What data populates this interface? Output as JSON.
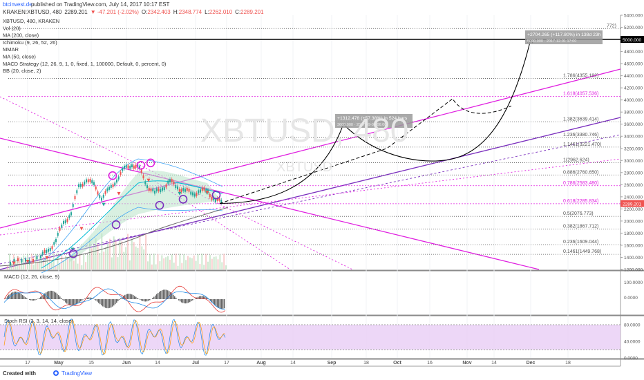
{
  "header": {
    "publisher_link": "btcinvest.de",
    "published_text": "published on TradingView.com, July 14, 2017 10:17 EST",
    "symbol": "KRAKEN:XBTUSD, 480",
    "last": "2289.201",
    "change": "▼ -47.201 (-2.02%)",
    "ohlc": [
      {
        "label": "O:",
        "value": "2342.403"
      },
      {
        "label": "H:",
        "value": "2348.774"
      },
      {
        "label": "L:",
        "value": "2262.010"
      },
      {
        "label": "C:",
        "value": "2289.201"
      }
    ]
  },
  "indicators": [
    "XBTUSD, 480, KRAKEN",
    "Vol (20)",
    "MA (200, close)",
    "Ichimoku (9, 26, 52, 26)",
    "MMAR",
    "MA (50, close)",
    "MACD Strategy (12, 26, 9, 1, 0, fixed, 1, 100000, Default, 0, percent, 0)",
    "BB (20, close, 2)"
  ],
  "watermark": {
    "main": "XBTUSD, 480",
    "sub": "XBTUSD"
  },
  "colors": {
    "magenta": "#e020e0",
    "purple": "#7b2fbe",
    "up": "#26a69a",
    "down": "#ef5350",
    "fib": "#555555",
    "stoch_fill": "#e8cdf5"
  },
  "chart_data": [
    {
      "type": "line",
      "panel": "price",
      "x_ticks": [
        "17",
        "May",
        "15",
        "Jun",
        "14",
        "Jul",
        "17",
        "Aug",
        "14",
        "Sep",
        "18",
        "Oct",
        "16",
        "Nov",
        "14",
        "Dec",
        "18"
      ],
      "y_ticks": [
        1200,
        1400,
        1600,
        1800,
        2000,
        2200,
        2400,
        2600,
        2800,
        3000,
        3200,
        3400,
        3600,
        3800,
        4000,
        4200,
        4400,
        4600,
        4800,
        5000,
        5200,
        5400
      ],
      "ylim": [
        1200,
        5400
      ],
      "price_tag": "2289.201",
      "target_tag": "5000.000",
      "fib_levels": [
        {
          "label": "0.1461(1449.768)",
          "value": 1449.768
        },
        {
          "label": "0.236(1609.044)",
          "value": 1609.044
        },
        {
          "label": "0.382(1867.712)",
          "value": 1867.712
        },
        {
          "label": "0.5(2076.773)",
          "value": 2076.773
        },
        {
          "label": "0.618(2285.834)",
          "value": 2285.834,
          "highlight": true
        },
        {
          "label": "0.786(2583.480)",
          "value": 2583.48,
          "highlight": true
        },
        {
          "label": "0.886(2760.650)",
          "value": 2760.65
        },
        {
          "label": "1(2962.624)",
          "value": 2962.624
        },
        {
          "label": "1.1461(3221.470)",
          "value": 3221.47
        },
        {
          "label": "1.236(3380.746)",
          "value": 3380.746
        },
        {
          "label": "1.382(3639.414)",
          "value": 3639.414
        },
        {
          "label": "1.618(4057.536)",
          "value": 4057.536,
          "highlight": true
        },
        {
          "label": "1.786(4355.182)",
          "value": 4355.182
        },
        {
          "label": "772)",
          "value": 5180
        }
      ],
      "price_path": [
        [
          0,
          1300
        ],
        [
          2,
          1350
        ],
        [
          4,
          1420
        ],
        [
          5,
          1500
        ],
        [
          6,
          1700
        ],
        [
          7,
          1950
        ],
        [
          8,
          2150
        ],
        [
          9,
          2550
        ],
        [
          10,
          2700
        ],
        [
          11,
          2580
        ],
        [
          12,
          2400
        ],
        [
          13,
          2500
        ],
        [
          14,
          2700
        ],
        [
          15,
          2850
        ],
        [
          16,
          2950
        ],
        [
          17,
          2850
        ],
        [
          18,
          2600
        ],
        [
          19,
          2450
        ],
        [
          20,
          2550
        ],
        [
          21,
          2650
        ],
        [
          22,
          2560
        ],
        [
          23,
          2500
        ],
        [
          24,
          2450
        ],
        [
          25,
          2500
        ],
        [
          26,
          2480
        ],
        [
          27,
          2350
        ],
        [
          28,
          2290
        ]
      ],
      "annotations": [
        {
          "text": "+1312.478 (+57.38%) in 524 bars",
          "sub": "3600.000 · 2017-09-05 06:00"
        },
        {
          "text": "+2704.265 (+117.80%) in 138d 23h",
          "sub": "5000.000 · 2017-12-01 17:00"
        }
      ]
    },
    {
      "type": "line",
      "panel": "macd",
      "title": "MACD (12, 26, close, 9)",
      "y_ticks": [
        "100.0000",
        "0.0000"
      ]
    },
    {
      "type": "area",
      "panel": "stoch_rsi",
      "title": "Stoch RSI (3, 3, 14, 14, close)",
      "y_ticks": [
        "80.0000",
        "40.0000",
        "0.0000"
      ],
      "band": [
        20,
        80
      ]
    }
  ],
  "footer": {
    "created_with": "Created with",
    "brand": "TradingView"
  }
}
